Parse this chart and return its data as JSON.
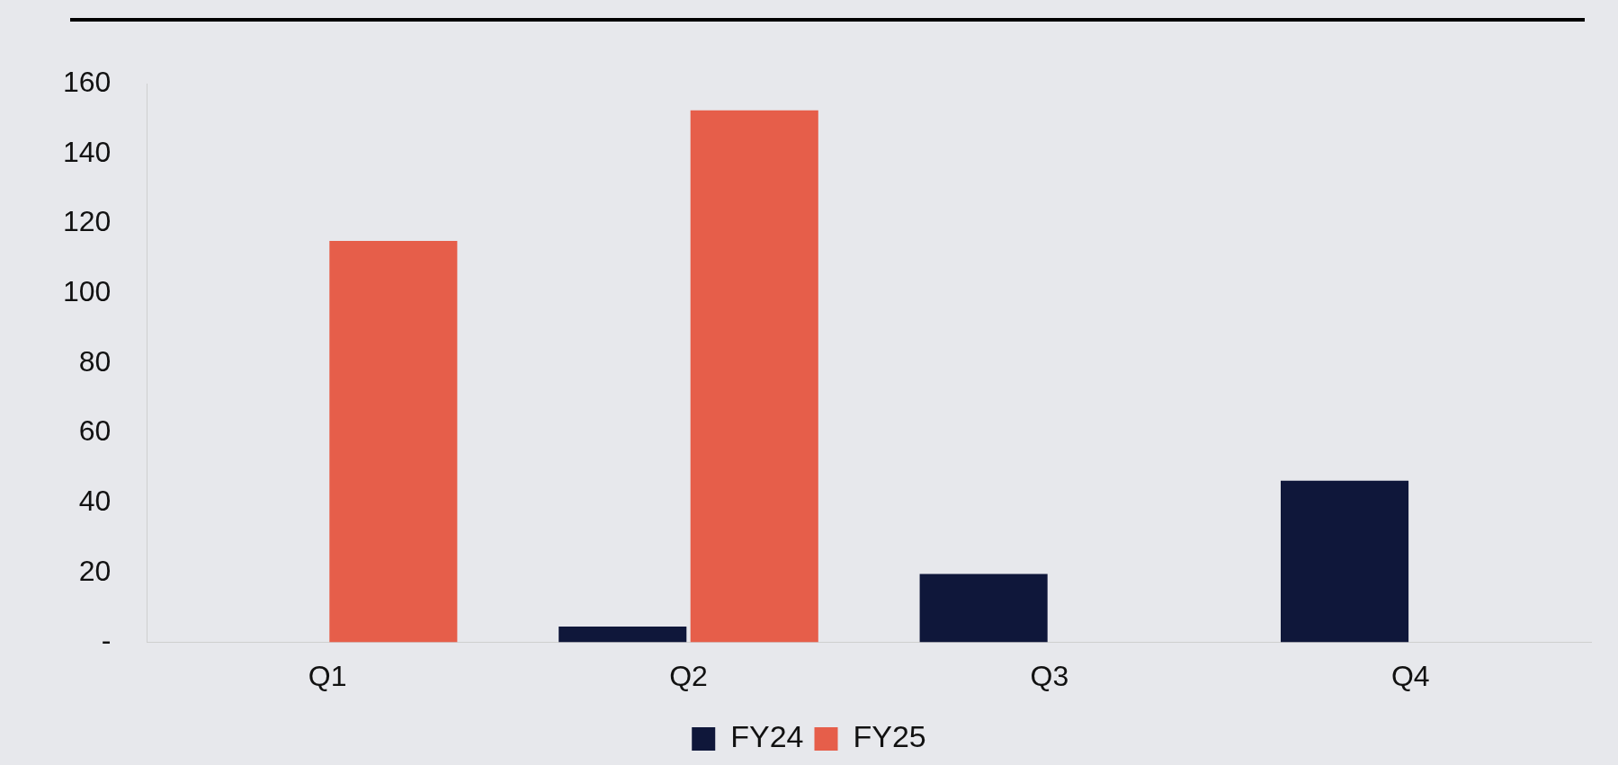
{
  "chart_data": {
    "type": "bar",
    "categories": [
      "Q1",
      "Q2",
      "Q3",
      "Q4"
    ],
    "series": [
      {
        "name": "FY24",
        "color": "#0f173a",
        "values": [
          null,
          4.5,
          19.6,
          46.3
        ]
      },
      {
        "name": "FY25",
        "color": "#e65e4a",
        "values": [
          115,
          152.4,
          null,
          null
        ]
      }
    ],
    "ylim": [
      0,
      160
    ],
    "yticks": [
      {
        "value": 0,
        "label": "-"
      },
      20,
      40,
      60,
      80,
      100,
      120,
      140,
      160
    ],
    "grid": false,
    "legend": "bottom"
  }
}
